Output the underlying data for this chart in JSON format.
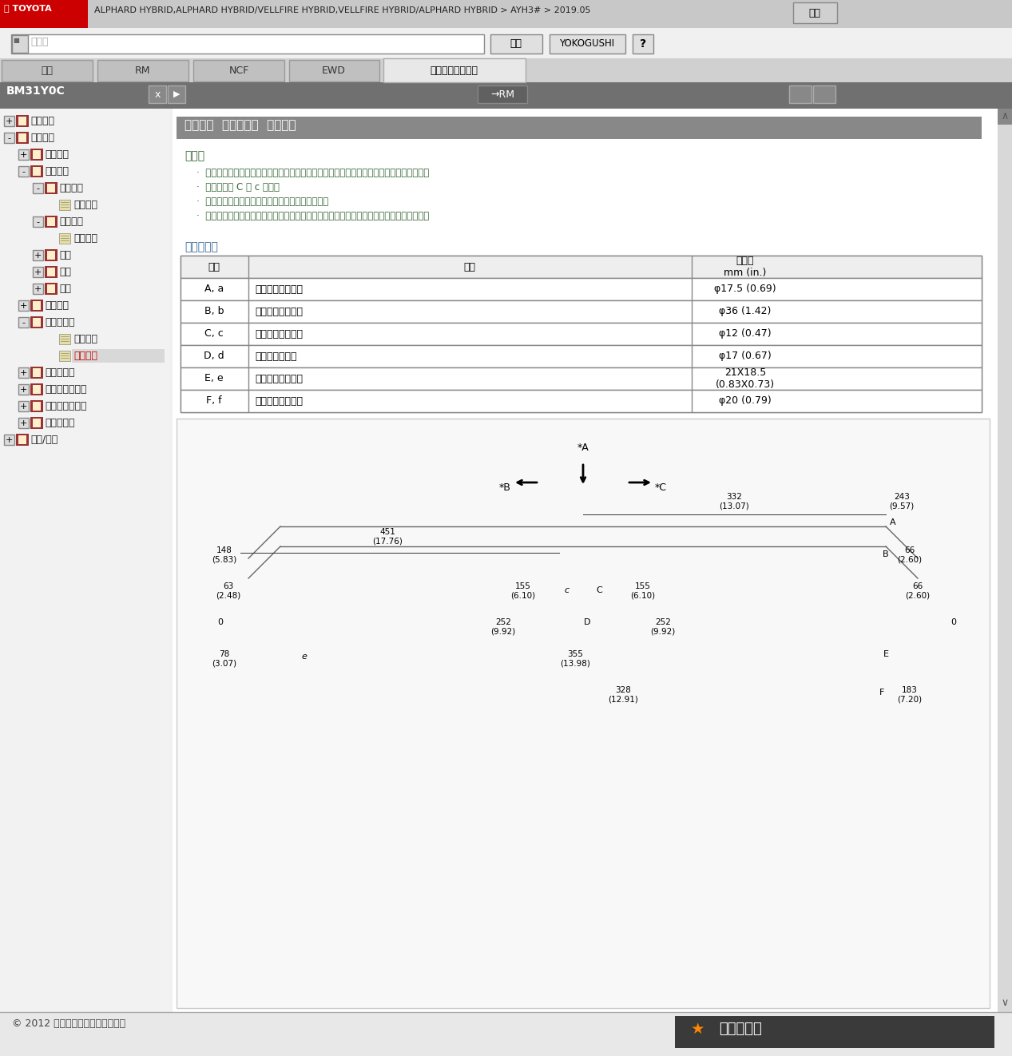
{
  "title_bar_text": "ALPHARD HYBRID,ALPHARD HYBRID/VELLFIRE HYBRID,VELLFIRE HYBRID/ALPHARD HYBRID > AYH3# > 2019.05",
  "help_text": "帮助",
  "search_placeholder": "关键字",
  "search_btn": "搜索",
  "yokogushi_btn": "YOKOGUSHI",
  "tabs": [
    "结果",
    "RM",
    "NCF",
    "EWD",
    "车身损伤修理手册"
  ],
  "active_tab": 4,
  "panel_code": "BM31Y0C",
  "panel_rm": "→RM",
  "section_title": "车身尺寸  前悬架横梁  二维距离",
  "hint_label": "提示：",
  "hints": [
    "在箭头（从零点引出的）与直线（从各点朝图的外侧引出的）相交的地方标注长度测量值。",
    "车辆上的点 C 和 c 对称。",
    "如果只标出一种尺寸，则表示左右是互相对称的。",
    "用大写字母表示的符号指车身右侧，用小写字母表示的符号指车身左侧（从车辆后部看）。"
  ],
  "measure_title": "测量点名称",
  "table_headers": [
    "符号",
    "名称",
    "孔直径\nmm (in.)"
  ],
  "table_rows": [
    [
      "A, a",
      "前悬架下臂安装孔",
      "φ17.5 (0.69)"
    ],
    [
      "B, b",
      "前悬架横梁安装孔",
      "φ36 (1.42)"
    ],
    [
      "C, c",
      "前悬架横梁标准孔",
      "φ12 (0.47)"
    ],
    [
      "D, d",
      "转向机壳安装孔",
      "φ17 (0.67)"
    ],
    [
      "E, e",
      "前悬架下臂安装孔",
      "21X18.5\n(0.83X0.73)"
    ],
    [
      "F, f",
      "前悬架横梁安装孔",
      "φ20 (0.79)"
    ]
  ],
  "sidebar_items": [
    {
      "level": 1,
      "text": "一般信息",
      "type": "plus"
    },
    {
      "level": 1,
      "text": "车辆外饰",
      "type": "minus"
    },
    {
      "level": 2,
      "text": "车身面板",
      "type": "plus"
    },
    {
      "level": 2,
      "text": "车身尺寸",
      "type": "minus"
    },
    {
      "level": 3,
      "text": "测量须知",
      "type": "minus"
    },
    {
      "level": 4,
      "text": "图表说明",
      "type": "doc"
    },
    {
      "level": 3,
      "text": "发动机室",
      "type": "minus"
    },
    {
      "level": 4,
      "text": "三维距离",
      "type": "doc"
    },
    {
      "level": 3,
      "text": "前门",
      "type": "plus"
    },
    {
      "level": 3,
      "text": "后门",
      "type": "plus"
    },
    {
      "level": 3,
      "text": "背门",
      "type": "plus"
    },
    {
      "level": 2,
      "text": "车身底部",
      "type": "plus"
    },
    {
      "level": 2,
      "text": "前悬架横梁",
      "type": "minus"
    },
    {
      "level": 4,
      "text": "三维距离",
      "type": "doc"
    },
    {
      "level": 4,
      "text": "二维距离",
      "type": "doc_active"
    },
    {
      "level": 2,
      "text": "后悬架横梁",
      "type": "plus"
    },
    {
      "level": 2,
      "text": "发动机室参考值",
      "type": "plus"
    },
    {
      "level": 2,
      "text": "车身底部参考值",
      "type": "plus"
    },
    {
      "level": 2,
      "text": "其他参考值",
      "type": "plus"
    },
    {
      "level": 1,
      "text": "油漆/涂层",
      "type": "plus"
    }
  ],
  "footer_text": "© 2012 丰田汽车公司。版权所有。",
  "footer_logo": "考汽修帮手",
  "diag_arrows": {
    "A_label": "*A",
    "B_label": "*B",
    "C_label": "*C"
  },
  "diag_dims": {
    "332": "332\n(13.07)",
    "243": "243\n(9.57)",
    "148": "148\n(5.83)",
    "451": "451\n(17.76)",
    "66": "66\n(2.60)",
    "63": "63\n(2.48)",
    "155L": "155\n(6.10)",
    "155R": "155\n(6.10)",
    "252L": "252\n(9.92)",
    "252R": "252\n(9.92)",
    "78": "78\n(3.07)",
    "355": "355\n(13.98)",
    "328": "328\n(12.91)",
    "183": "183\n(7.20)"
  }
}
